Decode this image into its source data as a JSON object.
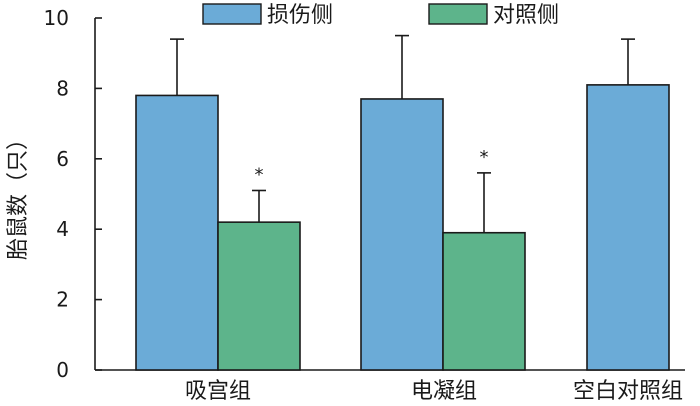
{
  "chart_data": {
    "type": "bar",
    "categories": [
      "吸宫组",
      "电凝组",
      "空白对照组"
    ],
    "series": [
      {
        "name": "损伤侧",
        "color": "#6babd7",
        "values": [
          7.8,
          7.7,
          8.1
        ],
        "errors": [
          1.6,
          1.8,
          1.3
        ],
        "significance": [
          "",
          "",
          ""
        ]
      },
      {
        "name": "对照侧",
        "color": "#5db48b",
        "values": [
          4.2,
          3.9,
          null
        ],
        "errors": [
          0.9,
          1.7,
          null
        ],
        "significance": [
          "*",
          "*",
          ""
        ]
      }
    ],
    "ylabel": "胎鼠数（只）",
    "xlabel": "",
    "ylim": [
      0,
      10
    ],
    "yticks": [
      0,
      2,
      4,
      6,
      8,
      10
    ],
    "legend_position": "top-center",
    "grid": false
  }
}
